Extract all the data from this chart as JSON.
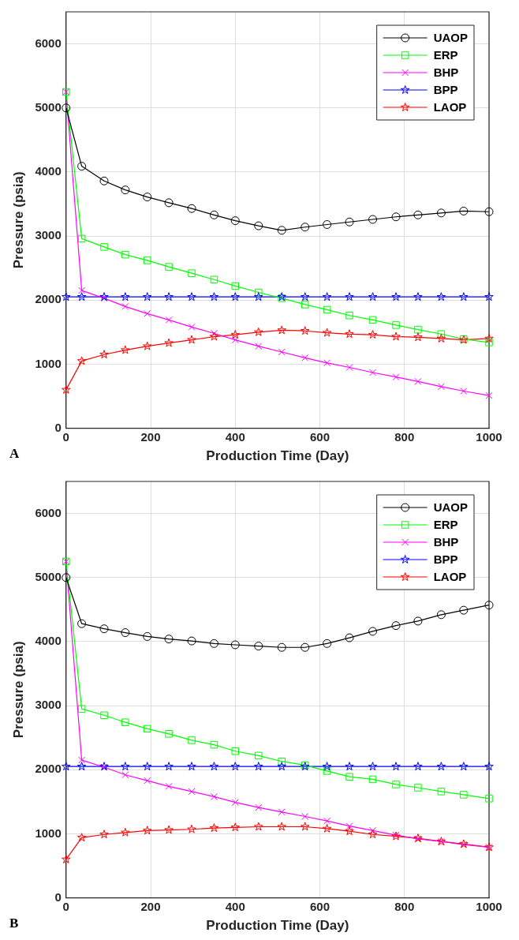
{
  "chart_data": [
    {
      "type": "line",
      "xlabel": "Production Time (Day)",
      "ylabel": "Pressure (psia)",
      "annotations": [
        "A"
      ],
      "xlim": [
        0,
        1000
      ],
      "xticks": [
        0,
        200,
        400,
        600,
        800,
        1000
      ],
      "ylim": [
        0,
        6500
      ],
      "yticks": [
        0,
        1000,
        2000,
        3000,
        4000,
        5000,
        6000
      ],
      "grid": true,
      "legend": "top right",
      "line_style": "solid",
      "x": [
        0,
        37,
        90,
        140,
        192,
        243,
        297,
        350,
        400,
        455,
        510,
        565,
        617,
        670,
        725,
        780,
        832,
        887,
        940,
        1000
      ],
      "series": [
        {
          "name": "UAOP",
          "color": "#000000",
          "marker": "circle",
          "values": [
            5000,
            4090,
            3860,
            3720,
            3610,
            3520,
            3430,
            3330,
            3240,
            3160,
            3090,
            3140,
            3180,
            3220,
            3260,
            3300,
            3330,
            3360,
            3390,
            3380
          ]
        },
        {
          "name": "ERP",
          "color": "#00ff00",
          "marker": "square",
          "values": [
            5250,
            2960,
            2830,
            2710,
            2620,
            2520,
            2420,
            2320,
            2220,
            2120,
            2030,
            1930,
            1850,
            1760,
            1690,
            1610,
            1540,
            1470,
            1390,
            1340
          ]
        },
        {
          "name": "BHP",
          "color": "#ff00ff",
          "marker": "cross",
          "values": [
            5250,
            2150,
            2030,
            1900,
            1790,
            1690,
            1580,
            1480,
            1380,
            1280,
            1190,
            1100,
            1020,
            950,
            870,
            800,
            730,
            650,
            580,
            510
          ]
        },
        {
          "name": "BPP",
          "color": "#0000ff",
          "marker": "star",
          "values": [
            2050,
            2050,
            2050,
            2050,
            2050,
            2050,
            2050,
            2050,
            2050,
            2050,
            2050,
            2050,
            2050,
            2050,
            2050,
            2050,
            2050,
            2050,
            2050,
            2050
          ]
        },
        {
          "name": "LAOP",
          "color": "#ff0000",
          "marker": "star",
          "values": [
            600,
            1050,
            1150,
            1220,
            1280,
            1330,
            1380,
            1430,
            1460,
            1500,
            1530,
            1520,
            1490,
            1470,
            1460,
            1430,
            1420,
            1400,
            1380,
            1400
          ]
        }
      ]
    },
    {
      "type": "line",
      "xlabel": "Production Time (Day)",
      "ylabel": "Pressure (psia)",
      "annotations": [
        "B"
      ],
      "xlim": [
        0,
        1000
      ],
      "xticks": [
        0,
        200,
        400,
        600,
        800,
        1000
      ],
      "ylim": [
        0,
        6500
      ],
      "yticks": [
        0,
        1000,
        2000,
        3000,
        4000,
        5000,
        6000
      ],
      "grid": true,
      "legend": "top right",
      "line_style": "solid",
      "x": [
        0,
        37,
        90,
        140,
        192,
        243,
        297,
        350,
        400,
        455,
        510,
        565,
        617,
        670,
        725,
        780,
        832,
        887,
        940,
        1000
      ],
      "series": [
        {
          "name": "UAOP",
          "color": "#000000",
          "marker": "circle",
          "values": [
            5000,
            4280,
            4200,
            4140,
            4080,
            4040,
            4010,
            3970,
            3950,
            3930,
            3910,
            3910,
            3970,
            4060,
            4160,
            4250,
            4320,
            4420,
            4490,
            4570
          ]
        },
        {
          "name": "ERP",
          "color": "#00ff00",
          "marker": "square",
          "values": [
            5250,
            2950,
            2850,
            2740,
            2640,
            2560,
            2460,
            2390,
            2290,
            2220,
            2130,
            2070,
            1980,
            1890,
            1850,
            1770,
            1720,
            1660,
            1610,
            1550
          ]
        },
        {
          "name": "BHP",
          "color": "#ff00ff",
          "marker": "cross",
          "values": [
            5250,
            2150,
            2040,
            1920,
            1830,
            1740,
            1660,
            1580,
            1490,
            1410,
            1340,
            1270,
            1200,
            1120,
            1050,
            980,
            920,
            880,
            830,
            790
          ]
        },
        {
          "name": "BPP",
          "color": "#0000ff",
          "marker": "star",
          "values": [
            2050,
            2050,
            2050,
            2050,
            2050,
            2050,
            2050,
            2050,
            2050,
            2050,
            2050,
            2050,
            2050,
            2050,
            2050,
            2050,
            2050,
            2050,
            2050,
            2050
          ]
        },
        {
          "name": "LAOP",
          "color": "#ff0000",
          "marker": "star",
          "values": [
            600,
            940,
            990,
            1020,
            1050,
            1060,
            1070,
            1090,
            1100,
            1110,
            1110,
            1110,
            1080,
            1040,
            990,
            960,
            930,
            880,
            840,
            790
          ]
        }
      ]
    }
  ]
}
